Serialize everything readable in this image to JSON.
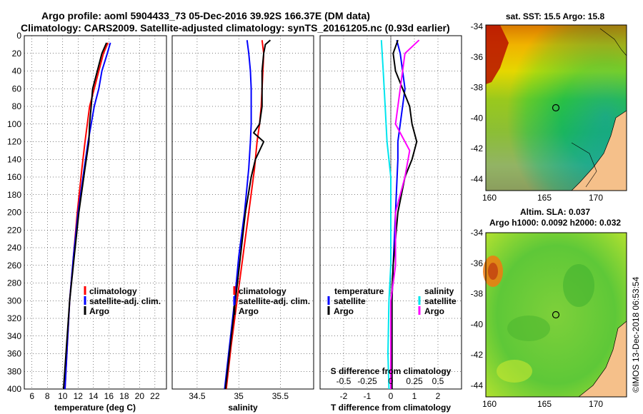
{
  "title_line1": "Argo profile: aoml 5904433_73 05-Dec-2016 39.92S 166.37E (DM data)",
  "title_line2": "Climatology: CARS2009. Satellite-adjusted climatology: synTS_20161205.nc (0.93d earlier)",
  "colors": {
    "climatology": "#ff0000",
    "satellite": "#0000ff",
    "argo": "#000000",
    "s_satellite": "#00e5ee",
    "s_argo": "#ff00ff"
  },
  "depth_ticks": [
    "0",
    "20",
    "40",
    "60",
    "80",
    "100",
    "120",
    "140",
    "160",
    "180",
    "200",
    "220",
    "240",
    "260",
    "280",
    "300",
    "320",
    "340",
    "360",
    "380",
    "400"
  ],
  "chart_data": [
    {
      "type": "line",
      "name": "temperature",
      "xlabel": "temperature (deg C)",
      "ylabel": "",
      "xlim": [
        5,
        23.5
      ],
      "ylim": [
        400,
        0
      ],
      "xticks": [
        "6",
        "8",
        "10",
        "12",
        "14",
        "16",
        "18",
        "20",
        "22"
      ],
      "legend": [
        "climatology",
        "satellite-adj. clim.",
        "Argo"
      ],
      "series": [
        {
          "name": "climatology",
          "color": "#ff0000",
          "depth": [
            8,
            20,
            40,
            60,
            80,
            100,
            120,
            150,
            200,
            250,
            300,
            350,
            400
          ],
          "values": [
            15.9,
            15.3,
            14.7,
            14.1,
            13.5,
            13.2,
            12.9,
            12.5,
            11.9,
            11.4,
            10.9,
            10.6,
            10.3
          ]
        },
        {
          "name": "satellite-adj. clim.",
          "color": "#0000ff",
          "depth": [
            8,
            20,
            40,
            60,
            80,
            100,
            120,
            150,
            200,
            250,
            300,
            350,
            400
          ],
          "values": [
            16.2,
            15.8,
            15.1,
            14.7,
            14.1,
            13.7,
            13.3,
            12.8,
            12.0,
            11.4,
            10.9,
            10.6,
            10.3
          ]
        },
        {
          "name": "Argo",
          "color": "#000000",
          "depth": [
            8,
            20,
            40,
            60,
            80,
            100,
            120,
            150,
            200,
            250,
            300,
            350,
            400
          ],
          "values": [
            15.7,
            15.1,
            14.5,
            13.9,
            13.7,
            13.5,
            13.4,
            12.9,
            12.1,
            11.5,
            10.9,
            10.5,
            10.1
          ]
        }
      ]
    },
    {
      "type": "line",
      "name": "salinity",
      "xlabel": "salinity",
      "ylabel": "",
      "xlim": [
        34.2,
        35.9
      ],
      "ylim": [
        400,
        0
      ],
      "xticks": [
        "34.5",
        "35",
        "35.5"
      ],
      "legend": [
        "climatology",
        "satellite-adj. clim.",
        "Argo"
      ],
      "series": [
        {
          "name": "climatology",
          "color": "#ff0000",
          "depth": [
            5,
            20,
            40,
            60,
            80,
            100,
            120,
            150,
            200,
            250,
            300,
            350,
            400
          ],
          "values": [
            35.28,
            35.3,
            35.29,
            35.28,
            35.27,
            35.25,
            35.22,
            35.19,
            35.12,
            35.05,
            34.98,
            34.91,
            34.85
          ]
        },
        {
          "name": "satellite-adj. clim.",
          "color": "#0000ff",
          "depth": [
            5,
            20,
            40,
            60,
            80,
            100,
            120,
            150,
            200,
            250,
            300,
            350,
            400
          ],
          "values": [
            35.1,
            35.12,
            35.14,
            35.15,
            35.15,
            35.15,
            35.14,
            35.12,
            35.07,
            35.0,
            34.95,
            34.89,
            34.83
          ]
        },
        {
          "name": "Argo",
          "color": "#000000",
          "depth": [
            5,
            10,
            20,
            40,
            60,
            80,
            100,
            110,
            120,
            140,
            160,
            200,
            250,
            300,
            350,
            400
          ],
          "values": [
            35.38,
            35.32,
            35.3,
            35.28,
            35.28,
            35.28,
            35.25,
            35.18,
            35.3,
            35.2,
            35.15,
            35.08,
            35.02,
            34.96,
            34.9,
            34.84
          ]
        }
      ]
    },
    {
      "type": "line",
      "name": "difference",
      "xlabel": "T difference from climatology",
      "xlabel2": "S difference from climatology",
      "xlim": [
        -3,
        3
      ],
      "ylim": [
        400,
        0
      ],
      "xticks": [
        "-2",
        "-1",
        "0",
        "1",
        "2"
      ],
      "s_xticks": [
        "-0.5",
        "-0.25",
        "0",
        "0.25",
        "0.5"
      ],
      "legend_temp_header": "temperature",
      "legend_sal_header": "salinity",
      "legend_temp": [
        "satellite",
        "Argo"
      ],
      "legend_sal": [
        "satellite",
        "Argo"
      ],
      "series": [
        {
          "name": "T satellite",
          "color": "#0000ff",
          "depth": [
            5,
            20,
            40,
            60,
            80,
            100,
            120,
            140,
            200,
            260,
            300,
            360,
            400
          ],
          "values": [
            0.25,
            0.4,
            0.5,
            0.6,
            0.5,
            0.4,
            0.3,
            0.3,
            0.2,
            0.1,
            0.05,
            0.05,
            0.05
          ]
        },
        {
          "name": "T Argo",
          "color": "#000000",
          "depth": [
            5,
            20,
            40,
            60,
            80,
            100,
            120,
            140,
            160,
            200,
            260,
            300,
            360,
            400
          ],
          "values": [
            0.3,
            0.1,
            0.2,
            0.5,
            0.8,
            0.9,
            1.1,
            0.9,
            0.6,
            0.3,
            0.1,
            0.05,
            0.05,
            0.05
          ]
        },
        {
          "name": "S satellite",
          "color": "#00e5ee",
          "depth": [
            5,
            40,
            80,
            120,
            160,
            200,
            260,
            300,
            360,
            400
          ],
          "values": [
            -0.1,
            -0.08,
            -0.06,
            -0.04,
            0.0,
            0.0,
            0.0,
            -0.02,
            -0.03,
            -0.02
          ]
        },
        {
          "name": "S Argo",
          "color": "#ff00ff",
          "depth": [
            5,
            20,
            60,
            100,
            110,
            130,
            160,
            200,
            260,
            300,
            360,
            400
          ],
          "values": [
            0.3,
            0.15,
            0.1,
            0.05,
            0.1,
            0.2,
            0.15,
            0.05,
            0.05,
            0.0,
            0.0,
            0.0
          ]
        }
      ]
    }
  ],
  "map_sst": {
    "title": "sat. SST: 15.5 Argo: 15.8",
    "yticks": [
      "-34",
      "-36",
      "-38",
      "-40",
      "-42",
      "-44"
    ],
    "xticks": [
      "160",
      "165",
      "170"
    ]
  },
  "map_sla": {
    "title1": "Altim. SLA: 0.037",
    "title2": "Argo h1000: 0.0092 h2000: 0.032",
    "yticks": [
      "-34",
      "-36",
      "-38",
      "-40",
      "-42",
      "-44"
    ],
    "xticks": [
      "160",
      "165",
      "170"
    ]
  },
  "credit": "©IMOS 13-Dec-2018 06:53:54"
}
